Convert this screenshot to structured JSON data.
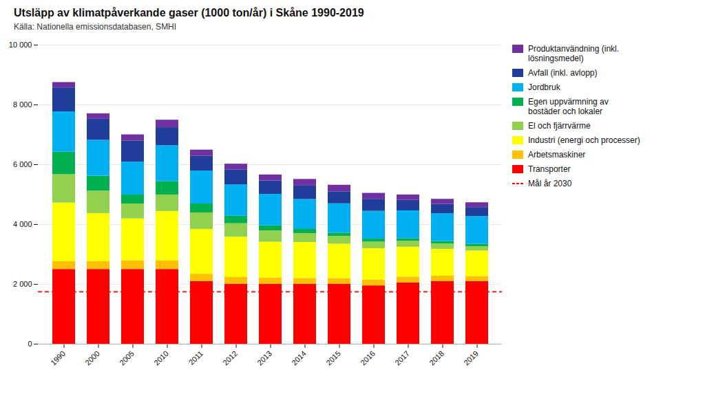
{
  "chart_data": {
    "type": "bar",
    "stacked": true,
    "title": "Utsläpp av klimatpåverkande gaser (1000 ton/år) i Skåne 1990-2019",
    "subtitle": "Källa: Nationella emissionsdatabasen, SMHI",
    "categories": [
      "1990",
      "2000",
      "2005",
      "2010",
      "2011",
      "2012",
      "2013",
      "2014",
      "2015",
      "2016",
      "2017",
      "2018",
      "2019"
    ],
    "series": [
      {
        "name": "Transporter",
        "color": "#ff0000",
        "values": [
          2500,
          2500,
          2500,
          2500,
          2100,
          2000,
          2000,
          2000,
          2000,
          1950,
          2050,
          2100,
          2100
        ]
      },
      {
        "name": "Arbetsmaskiner",
        "color": "#ffc000",
        "values": [
          270,
          270,
          290,
          290,
          240,
          230,
          210,
          200,
          195,
          195,
          195,
          175,
          165
        ]
      },
      {
        "name": "Industri (energi och processer)",
        "color": "#ffff00",
        "values": [
          1950,
          1600,
          1400,
          1650,
          1500,
          1350,
          1200,
          1200,
          1150,
          1050,
          1000,
          900,
          850
        ]
      },
      {
        "name": "El och fjärrvärme",
        "color": "#92d050",
        "values": [
          950,
          750,
          500,
          550,
          550,
          450,
          380,
          300,
          260,
          220,
          200,
          180,
          150
        ]
      },
      {
        "name": "Egen uppvärmning av\nbostäder och lokaler",
        "color": "#00b050",
        "values": [
          750,
          500,
          300,
          450,
          300,
          250,
          170,
          140,
          110,
          100,
          85,
          80,
          75
        ]
      },
      {
        "name": "Jordbruk",
        "color": "#00b0f0",
        "values": [
          1350,
          1200,
          1100,
          1200,
          1100,
          1050,
          1050,
          1000,
          980,
          930,
          930,
          930,
          930
        ]
      },
      {
        "name": "Avfall (inkl. avlopp)",
        "color": "#1f3d99",
        "values": [
          800,
          700,
          700,
          600,
          500,
          500,
          450,
          450,
          400,
          400,
          350,
          310,
          300
        ]
      },
      {
        "name": "Produktanvändning (inkl.\nlösningsmedel)",
        "color": "#7030a0",
        "values": [
          180,
          185,
          210,
          250,
          200,
          190,
          200,
          220,
          220,
          200,
          180,
          170,
          160
        ]
      }
    ],
    "reference_lines": [
      {
        "value": 1750,
        "label": "Mål år 2030",
        "color": "red",
        "line_style": "dashed"
      }
    ],
    "ylim": [
      0,
      10000
    ],
    "yticks": [
      0,
      {
        "value": 2000,
        "label": "2 000"
      },
      {
        "value": 4000,
        "label": "4 000"
      },
      {
        "value": 6000,
        "label": "6 000"
      },
      {
        "value": 8000,
        "label": "8 000"
      },
      {
        "value": 10000,
        "label": "10 000"
      }
    ],
    "grid": true,
    "legend": "right"
  }
}
